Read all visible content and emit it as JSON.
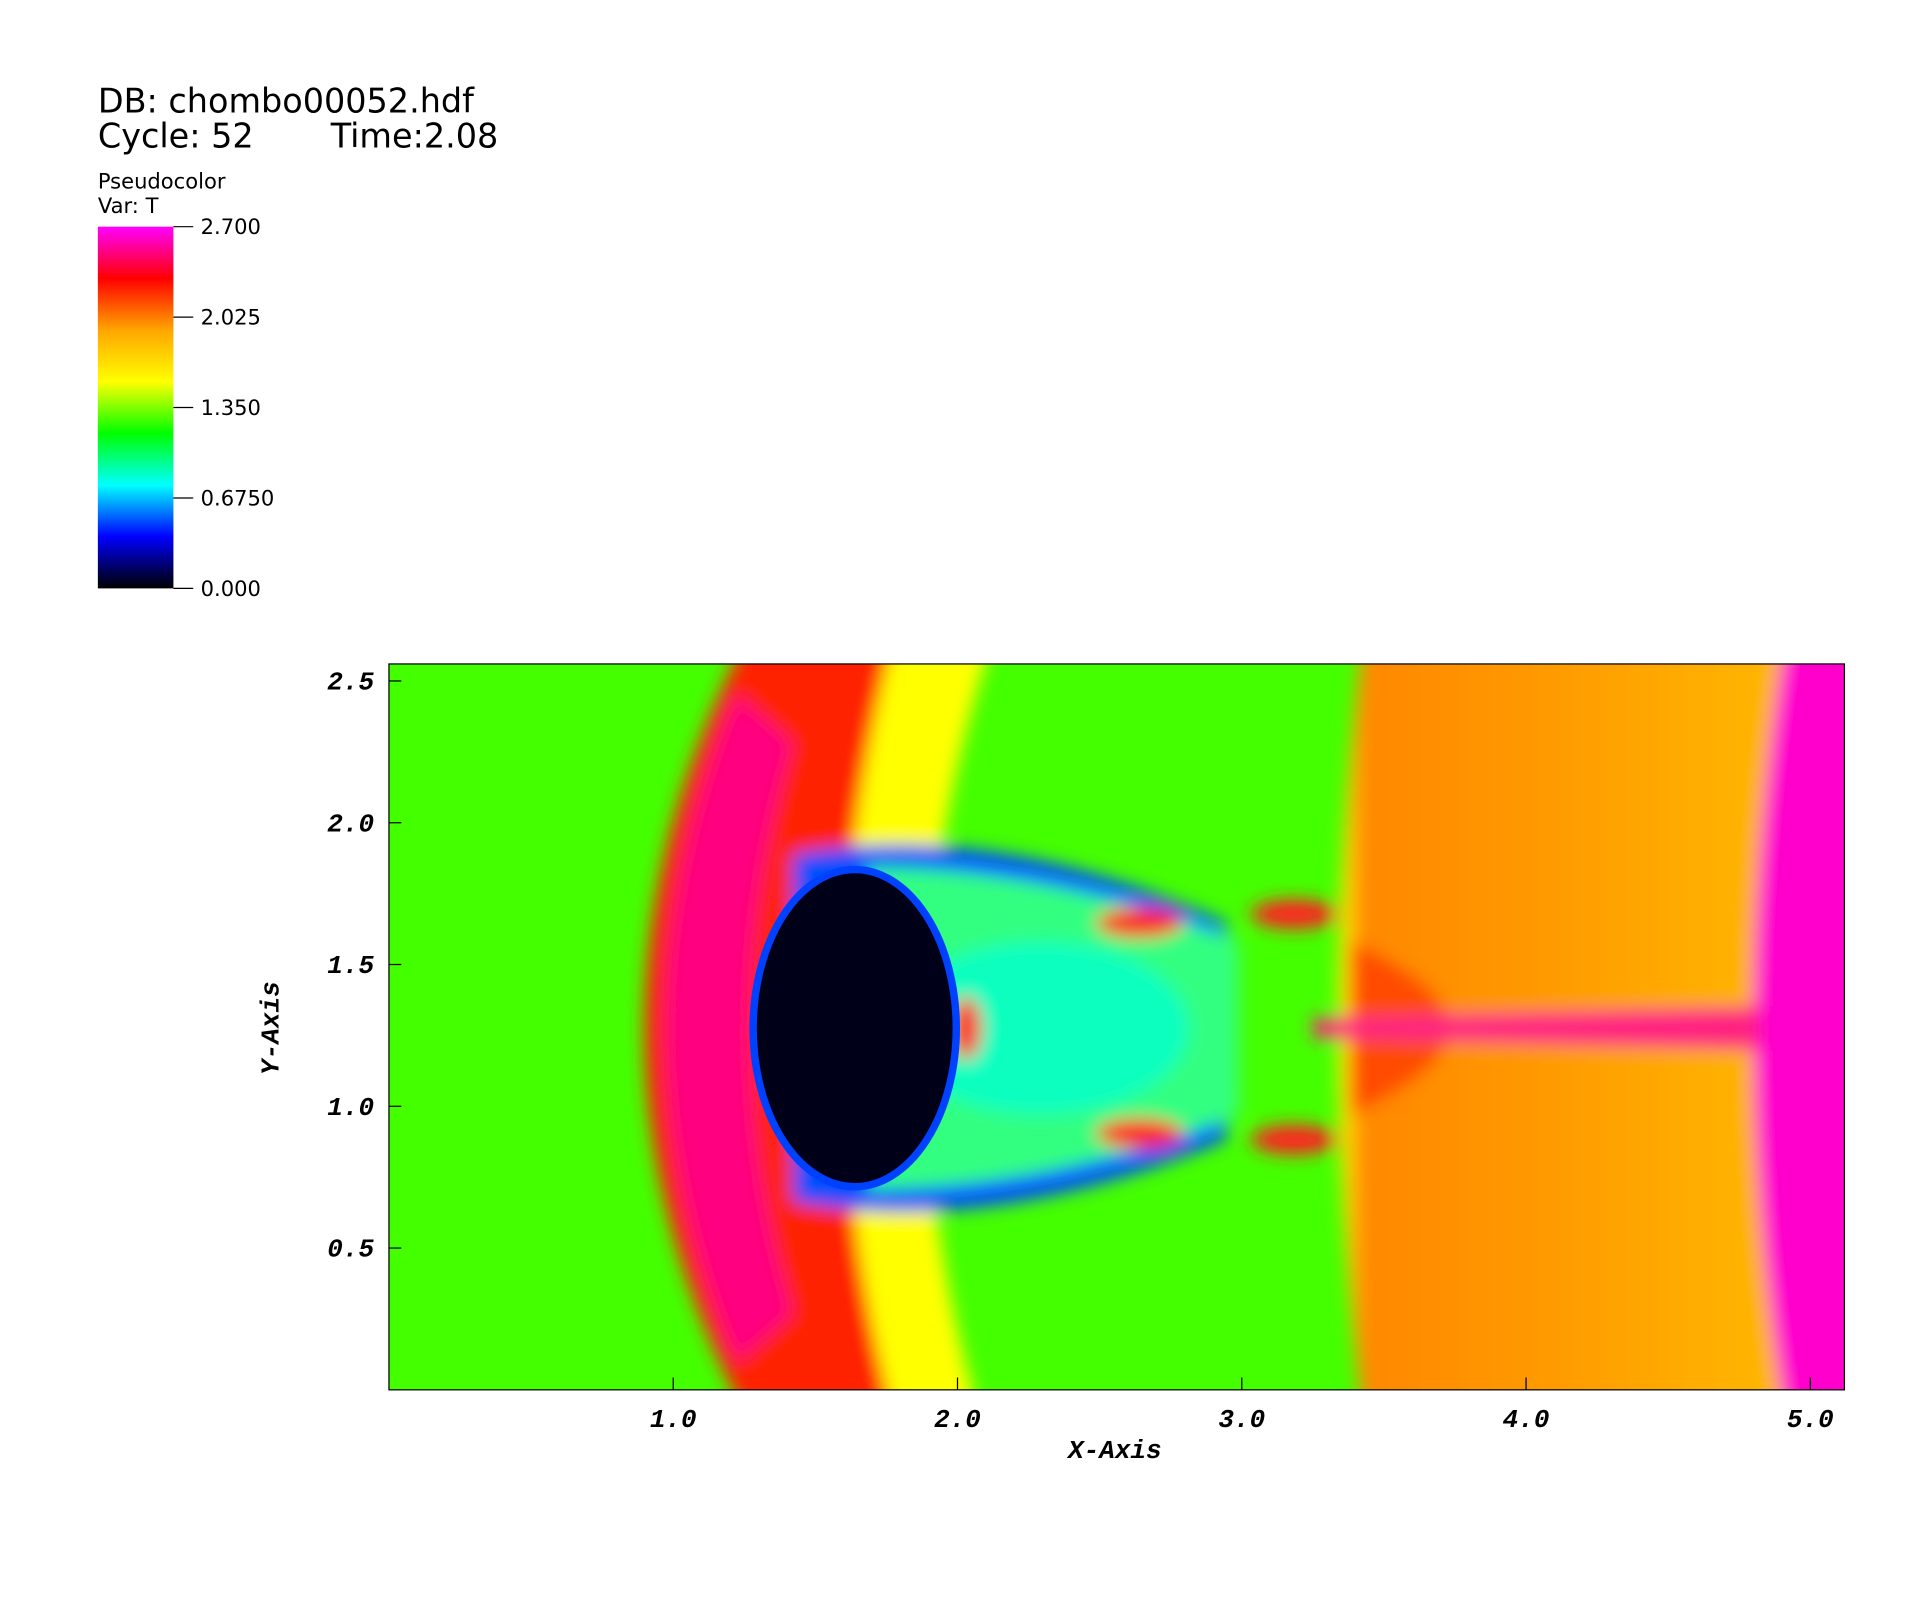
{
  "header": {
    "db": "DB: chombo00052.hdf",
    "cycle": "Cycle: 52",
    "time": "Time:2.08"
  },
  "chart_data": {
    "type": "pseudocolor",
    "plot_name": "Pseudocolor",
    "variable": "Var: T",
    "colorbar": {
      "lim": [
        0,
        2.7
      ],
      "ticks": [
        {
          "value": 2.7,
          "label": "2.700"
        },
        {
          "value": 2.025,
          "label": "2.025"
        },
        {
          "value": 1.35,
          "label": "1.350"
        },
        {
          "value": 0.675,
          "label": "0.6750"
        },
        {
          "value": 0,
          "label": "0.000"
        }
      ],
      "colors": [
        "#ff00ff",
        "#ff0000",
        "#ffa500",
        "#ffff00",
        "#00ff00",
        "#00ffff",
        "#0000ff",
        "#000000"
      ]
    },
    "xlabel": "X-Axis",
    "ylabel": "Y-Axis",
    "xlim": [
      0,
      5.12
    ],
    "ylim": [
      0,
      2.56
    ],
    "xticks": [
      {
        "value": 1,
        "label": "1.0"
      },
      {
        "value": 2,
        "label": "2.0"
      },
      {
        "value": 3,
        "label": "3.0"
      },
      {
        "value": 4,
        "label": "4.0"
      },
      {
        "value": 5,
        "label": "5.0"
      }
    ],
    "yticks": [
      0.5,
      {
        "value": 1,
        "label": "1.0"
      },
      1.5,
      {
        "value": 2,
        "label": "2.0"
      },
      2.5
    ]
  }
}
